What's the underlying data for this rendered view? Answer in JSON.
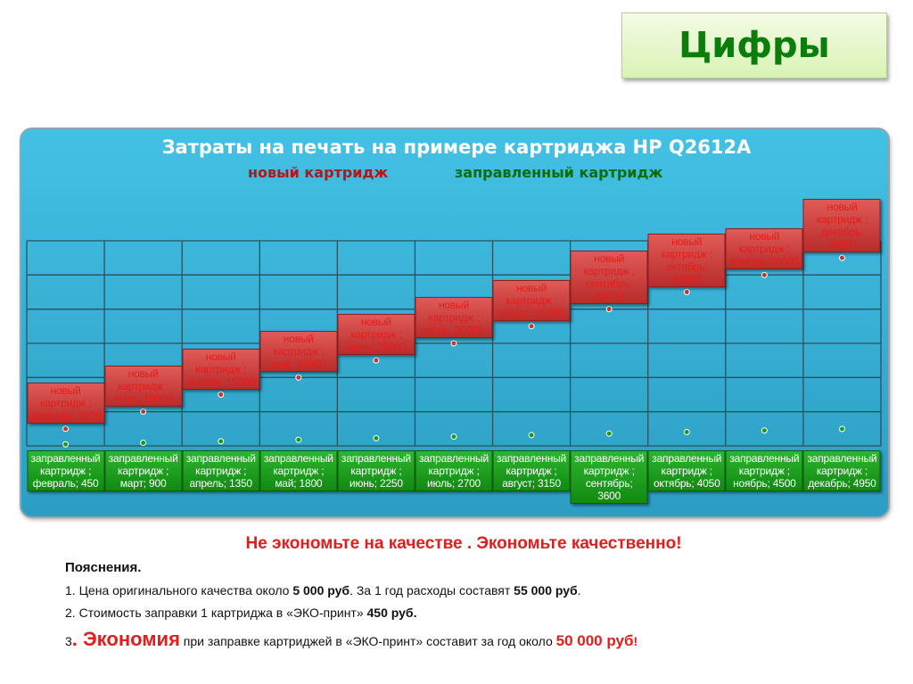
{
  "slide": {
    "heading": "Цифры",
    "slogan": "Не экономьте на качестве . Экономьте качественно!",
    "notes_title": "Пояснения.",
    "note1": {
      "a": "1. Цена оригинального качества около ",
      "b": "5 000 руб",
      "c": ". За 1 год расходы составят ",
      "d": "55 000 руб",
      "e": "."
    },
    "note2": {
      "a": "2. Стоимость заправки 1 картриджа в «ЭКО-принт» ",
      "b": "450 руб."
    },
    "note3": {
      "a": "3",
      "b": ". Экономия",
      "c": " при заправке картриджей в «ЭКО-принт» составит за год  около ",
      "d": "50 000 руб",
      "e": "!"
    }
  },
  "colors": {
    "new": "#c0392b",
    "refill": "#1a9a1a",
    "panel": "#3bb5dc"
  },
  "chart_data": {
    "type": "line",
    "title": "Затраты на печать на примере картриджа HP Q2612A",
    "legend": "top",
    "grid": true,
    "ylim": [
      0,
      60000
    ],
    "categories": [
      "февраль",
      "март",
      "апрель",
      "май",
      "июнь",
      "июль",
      "август",
      "сентябрь",
      "октябрь",
      "ноябрь",
      "декабрь"
    ],
    "series": [
      {
        "name": "новый картридж",
        "values": [
          5000,
          10000,
          15000,
          20000,
          25000,
          30000,
          35000,
          40000,
          45000,
          50000,
          55000
        ]
      },
      {
        "name": "заправленный картридж",
        "values": [
          450,
          900,
          1350,
          1800,
          2250,
          2700,
          3150,
          3600,
          4050,
          4500,
          4950
        ]
      }
    ]
  }
}
